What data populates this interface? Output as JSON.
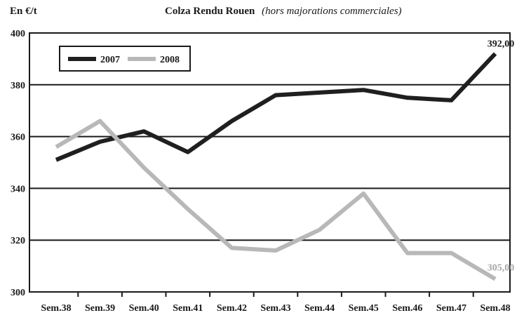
{
  "unit_label": "En €/t",
  "title": "Colza Rendu Rouen",
  "subtitle": "(hors majorations commerciales)",
  "chart_data": {
    "type": "line",
    "title": "Colza Rendu Rouen",
    "subtitle": "(hors majorations commerciales)",
    "ylabel": "En €/t",
    "xlabel": "",
    "categories": [
      "Sem.38",
      "Sem.39",
      "Sem.40",
      "Sem.41",
      "Sem.42",
      "Sem.43",
      "Sem.44",
      "Sem.45",
      "Sem.46",
      "Sem.47",
      "Sem.48"
    ],
    "ylim": [
      300,
      400
    ],
    "yticks": [
      300,
      320,
      340,
      360,
      380,
      400
    ],
    "grid": "horizontal",
    "legend": "top-left",
    "series": [
      {
        "name": "2007",
        "color": "#1f1f1f",
        "values": [
          351,
          358,
          362,
          354,
          366,
          376,
          377,
          378,
          375,
          374,
          392
        ]
      },
      {
        "name": "2008",
        "color": "#b8b8b8",
        "values": [
          356,
          366,
          348,
          332,
          317,
          316,
          324,
          338,
          315,
          315,
          305
        ]
      }
    ],
    "annotations": [
      {
        "series": "2007",
        "category": "Sem.48",
        "text": "392,00"
      },
      {
        "series": "2008",
        "category": "Sem.48",
        "text": "305,00"
      }
    ]
  }
}
